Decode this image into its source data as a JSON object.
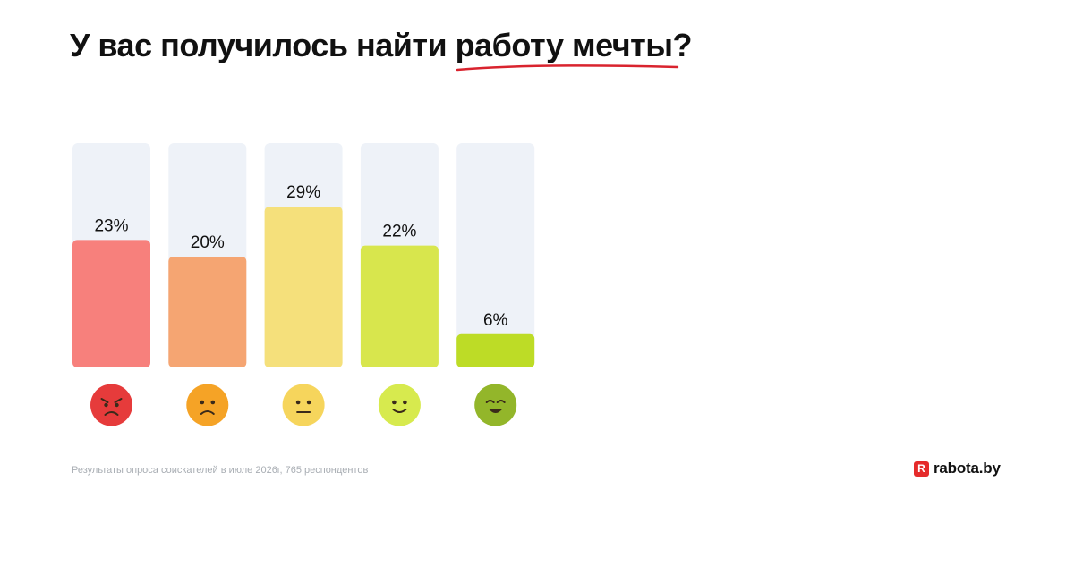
{
  "title": {
    "main": "У вас получилось найти ",
    "highlight": "работу мечты",
    "end": "?",
    "underline_color": "#d9232e"
  },
  "chart_data": {
    "type": "bar",
    "categories": [
      "angry",
      "sad",
      "neutral",
      "smile",
      "grin"
    ],
    "values": [
      23,
      20,
      29,
      22,
      6
    ],
    "value_labels": [
      "23%",
      "20%",
      "29%",
      "22%",
      "6%"
    ],
    "ylim": [
      0,
      100
    ],
    "bar_colors": [
      "#f7807c",
      "#f5a572",
      "#f5e07b",
      "#d8e64d",
      "#bddc26"
    ],
    "track_color": "#eef2f8",
    "grid": false,
    "xlabel": "",
    "ylabel": ""
  },
  "emojis": [
    {
      "icon": "angry-face-icon",
      "color": "#e63b3b"
    },
    {
      "icon": "sad-face-icon",
      "color": "#f5a326"
    },
    {
      "icon": "neutral-face-icon",
      "color": "#f6d55c"
    },
    {
      "icon": "smiling-face-icon",
      "color": "#d7ea4e"
    },
    {
      "icon": "grinning-face-icon",
      "color": "#93b62a"
    }
  ],
  "footnote": "Результаты опроса соискателей в июле 2026г, 765 респондентов",
  "logo": {
    "mark": "R",
    "text": "rabota.by",
    "color": "#e52b2b"
  }
}
